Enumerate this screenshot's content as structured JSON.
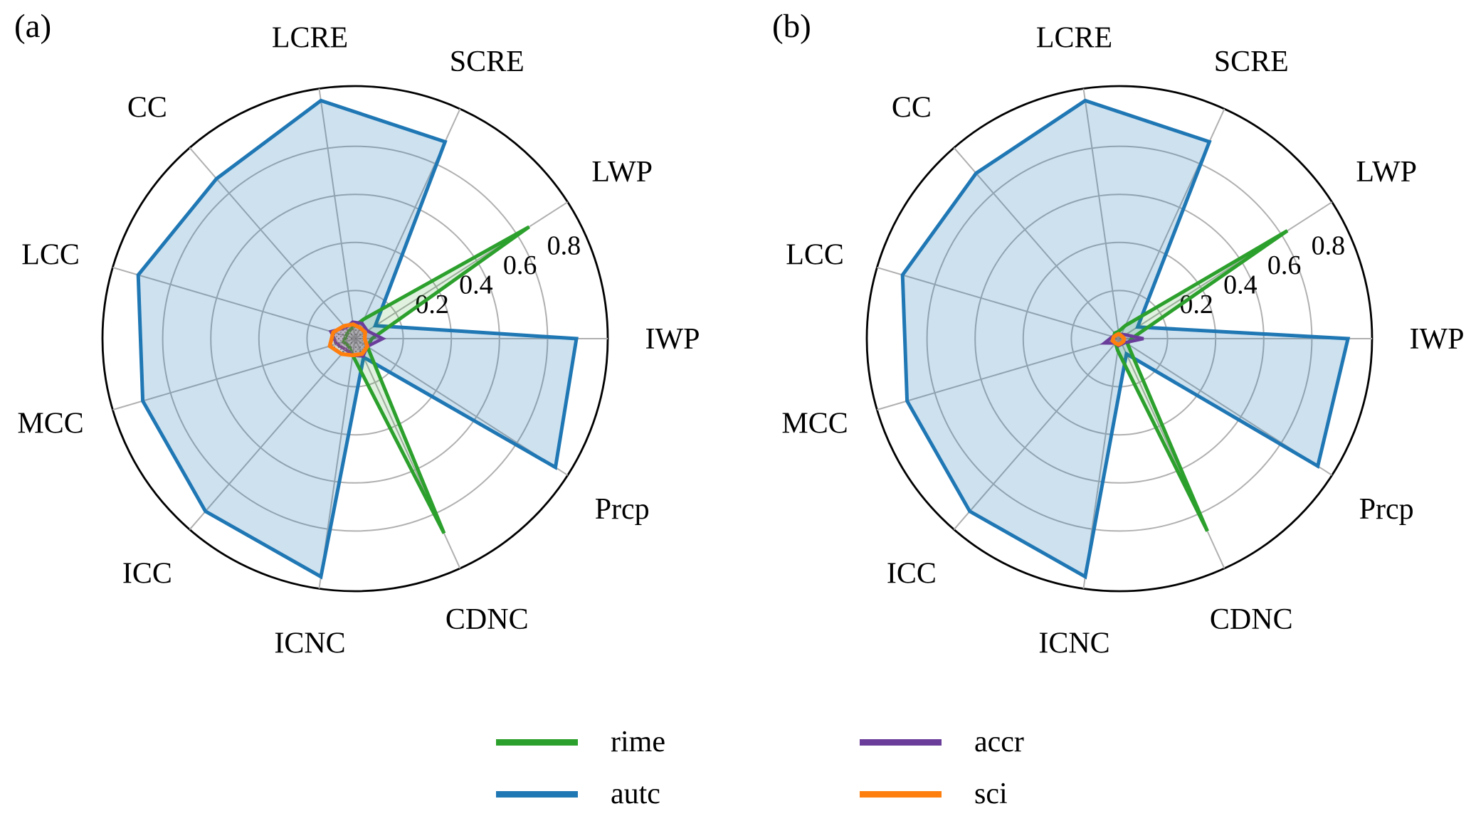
{
  "panel_labels": [
    "(a)",
    "(b)"
  ],
  "legend": [
    {
      "label": "rime",
      "color": "#2ca02c"
    },
    {
      "label": "accr",
      "color": "#6a3d9a"
    },
    {
      "label": "autc",
      "color": "#1f77b4"
    },
    {
      "label": "sci",
      "color": "#ff7f0e"
    }
  ],
  "colors": {
    "rime": "#2ca02c",
    "autc": "#1f77b4",
    "accr": "#6a3d9a",
    "sci": "#ff7f0e",
    "grid": "#b0b0b0",
    "outer_ring": "#000000",
    "autc_fill": "rgba(31,119,180,0.22)",
    "rime_fill": "rgba(44,160,44,0.15)",
    "accr_fill": "rgba(106,61,154,0.25)"
  },
  "chart_data": [
    {
      "type": "radar",
      "panel": "(a)",
      "categories": [
        "LCRE",
        "SCRE",
        "LWP",
        "IWP",
        "Prcp",
        "CDNC",
        "ICNC",
        "ICC",
        "MCC",
        "LCC",
        "CC"
      ],
      "start_angle_deg": 98.18,
      "direction": "clockwise",
      "r_ticks": [
        0.2,
        0.4,
        0.6,
        0.8
      ],
      "tick_labels": [
        "0.2",
        "0.4",
        "0.6",
        "0.8"
      ],
      "r_max": 1.05,
      "grid": true,
      "series": [
        {
          "name": "autc",
          "values": [
            1.0,
            0.9,
            0.1,
            0.92,
            0.99,
            0.085,
            1.0,
            0.95,
            0.92,
            0.94,
            0.88
          ]
        },
        {
          "name": "rime",
          "values": [
            0.05,
            0.09,
            0.86,
            0.07,
            0.06,
            0.89,
            0.07,
            0.04,
            0.05,
            0.04,
            0.04
          ]
        },
        {
          "name": "accr",
          "values": [
            0.07,
            0.07,
            0.06,
            0.115,
            0.06,
            0.08,
            0.07,
            0.06,
            0.08,
            0.105,
            0.06
          ]
        },
        {
          "name": "sci",
          "values": [
            0.06,
            0.05,
            0.05,
            0.04,
            0.06,
            0.07,
            0.07,
            0.085,
            0.11,
            0.095,
            0.07
          ]
        }
      ]
    },
    {
      "type": "radar",
      "panel": "(b)",
      "categories": [
        "LCRE",
        "SCRE",
        "LWP",
        "IWP",
        "Prcp",
        "CDNC",
        "ICNC",
        "ICC",
        "MCC",
        "LCC",
        "CC"
      ],
      "start_angle_deg": 98.18,
      "direction": "clockwise",
      "r_ticks": [
        0.2,
        0.4,
        0.6,
        0.8
      ],
      "tick_labels": [
        "0.2",
        "0.4",
        "0.6",
        "0.8"
      ],
      "r_max": 1.05,
      "grid": true,
      "series": [
        {
          "name": "autc",
          "values": [
            1.0,
            0.9,
            0.09,
            0.95,
            0.98,
            0.07,
            1.0,
            0.95,
            0.92,
            0.94,
            0.91
          ]
        },
        {
          "name": "rime",
          "values": [
            0.03,
            0.06,
            0.83,
            0.05,
            0.04,
            0.88,
            0.05,
            0.025,
            0.03,
            0.025,
            0.03
          ]
        },
        {
          "name": "accr",
          "values": [
            0.02,
            0.02,
            0.03,
            0.1,
            0.03,
            0.025,
            0.03,
            0.025,
            0.065,
            0.03,
            0.02
          ]
        },
        {
          "name": "sci",
          "values": [
            0.02,
            0.015,
            0.015,
            0.02,
            0.02,
            0.02,
            0.025,
            0.025,
            0.03,
            0.025,
            0.02
          ]
        }
      ]
    }
  ]
}
